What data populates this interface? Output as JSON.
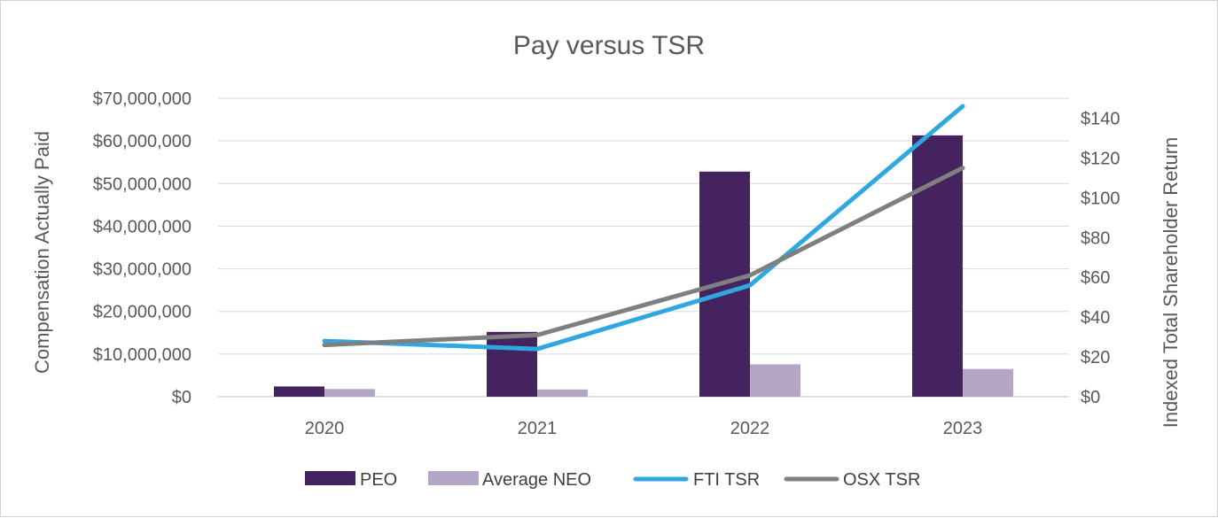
{
  "chart_data": {
    "type": "bar",
    "title": "Pay versus TSR",
    "categories": [
      "2020",
      "2021",
      "2022",
      "2023"
    ],
    "ylabel": "Compensation Actually Paid",
    "y2label": "Indexed Total Shareholder Return",
    "ylim": [
      0,
      70000000
    ],
    "y2lim": [
      0,
      150
    ],
    "yticks": [
      0,
      10000000,
      20000000,
      30000000,
      40000000,
      50000000,
      60000000,
      70000000
    ],
    "ytick_labels": [
      "$0",
      "$10,000,000",
      "$20,000,000",
      "$30,000,000",
      "$40,000,000",
      "$50,000,000",
      "$60,000,000",
      "$70,000,000"
    ],
    "y2ticks": [
      0,
      20,
      40,
      60,
      80,
      100,
      120,
      140
    ],
    "y2tick_labels": [
      "$0",
      "$20",
      "$40",
      "$60",
      "$80",
      "$100",
      "$120",
      "$140"
    ],
    "series": [
      {
        "name": "PEO",
        "type": "bar",
        "axis": "left",
        "color": "#45235e",
        "values": [
          2400000,
          15200000,
          52800000,
          61300000
        ]
      },
      {
        "name": "Average NEO",
        "type": "bar",
        "axis": "left",
        "color": "#b4a7c5",
        "values": [
          1800000,
          1700000,
          7600000,
          6500000
        ]
      },
      {
        "name": "FTI TSR",
        "type": "line",
        "axis": "right",
        "color": "#2fa8e0",
        "values": [
          28,
          24,
          56,
          146
        ]
      },
      {
        "name": "OSX TSR",
        "type": "line",
        "axis": "right",
        "color": "#7f7f7f",
        "values": [
          26,
          31,
          61,
          115
        ]
      }
    ],
    "legend": "bottom",
    "grid": true
  }
}
